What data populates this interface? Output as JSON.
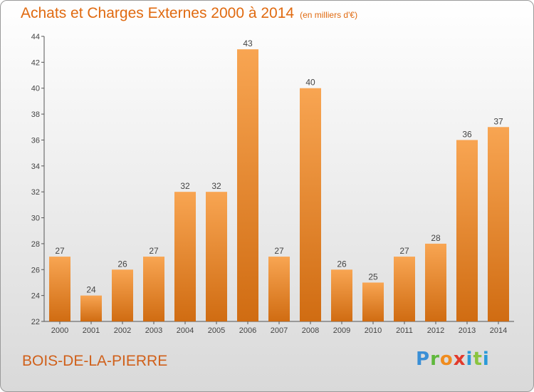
{
  "chart_data": {
    "type": "bar",
    "title": "Achats et Charges Externes 2000 à 2014",
    "subtitle": "(en milliers d'€)",
    "categories": [
      "2000",
      "2001",
      "2002",
      "2003",
      "2004",
      "2005",
      "2006",
      "2007",
      "2008",
      "2009",
      "2010",
      "2011",
      "2012",
      "2013",
      "2014"
    ],
    "values": [
      27,
      24,
      26,
      27,
      32,
      32,
      43,
      27,
      40,
      26,
      25,
      27,
      28,
      36,
      37
    ],
    "ylim": [
      22,
      44
    ],
    "yticks": [
      22,
      24,
      26,
      28,
      30,
      32,
      34,
      36,
      38,
      40,
      42,
      44
    ],
    "grid": false,
    "bar_color_top": "#f8a552",
    "bar_color_bottom": "#d06c12"
  },
  "footer": {
    "commune": "BOIS-DE-LA-PIERRE",
    "logo": "Proxiti"
  }
}
